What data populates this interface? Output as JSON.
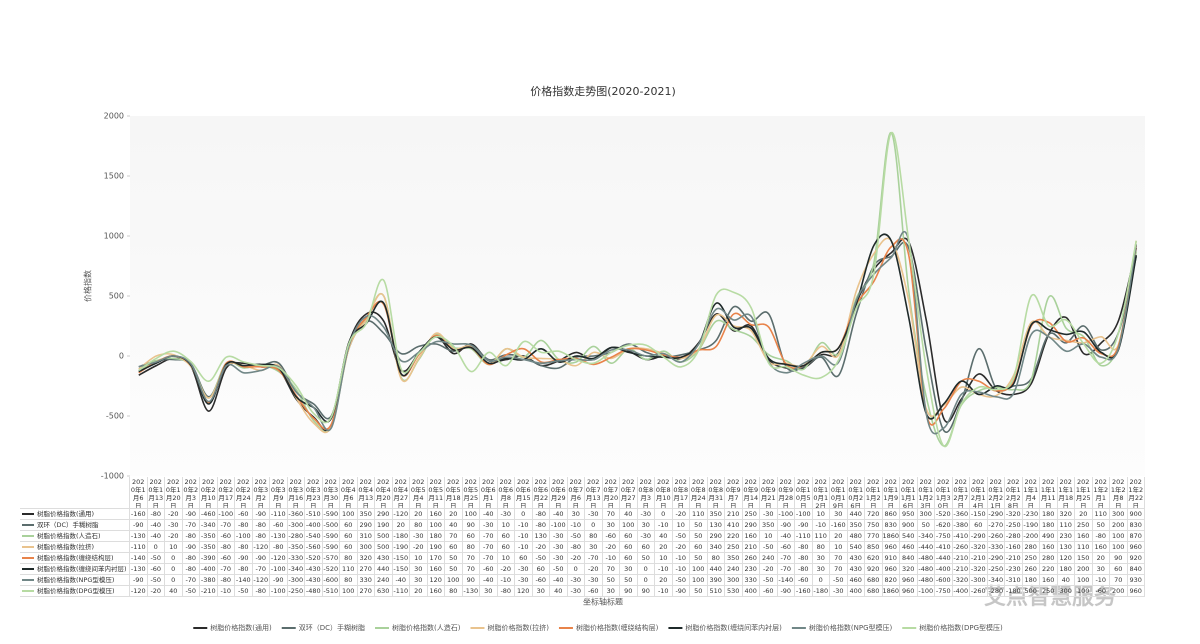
{
  "chart_data": {
    "type": "line",
    "title": "价格指数走势图(2020-2021)",
    "y_label": "价格指数",
    "x_label": "坐标轴标题",
    "watermark": "艾点智慧服务",
    "ylim": [
      -1000,
      2000
    ],
    "yticks": [
      -1000,
      -500,
      0,
      500,
      1000,
      1500,
      2000
    ],
    "grid": false,
    "categories": [
      "2020年1月6日",
      "2020年1月13日",
      "2020年1月20日",
      "2020年2月3日",
      "2020年2月10日",
      "2020年2月17日",
      "2020年2月24日",
      "2020年3月2日",
      "2020年3月9日",
      "2020年3月16日",
      "2020年3月23日",
      "2020年3月30日",
      "2020年4月6日",
      "2020年4月13日",
      "2020年4月20日",
      "2020年4月27日",
      "2020年5月4日",
      "2020年5月11日",
      "2020年5月18日",
      "2020年5月25日",
      "2020年6月1日",
      "2020年6月8日",
      "2020年6月15日",
      "2020年6月22日",
      "2020年6月29日",
      "2020年7月6日",
      "2020年7月13日",
      "2020年7月20日",
      "2020年7月27日",
      "2020年8月3日",
      "2020年8月10日",
      "2020年8月17日",
      "2020年8月24日",
      "2020年8月31日",
      "2020年9月7日",
      "2020年9月14日",
      "2020年9月21日",
      "2020年9月28日",
      "2020年10月5日",
      "2020年10月12日",
      "2020年10月19日",
      "2020年10月26日",
      "2020年11月2日",
      "2020年11月9日",
      "2020年11月16日",
      "2020年11月23日",
      "2020年11月30日",
      "2020年12月7日",
      "2020年12月14日",
      "2020年12月21日",
      "2020年12月28日",
      "2021年1月4日",
      "2021年1月11日",
      "2021年1月18日",
      "2021年1月25日",
      "2021年2月1日",
      "2021年2月8日",
      "2021年2月22日"
    ],
    "series": [
      {
        "name": "树脂价格指数(通用)",
        "color": "#2b2b2b",
        "values": [
          -160,
          -80,
          -20,
          -90,
          -460,
          -100,
          -60,
          -90,
          -110,
          -360,
          -510,
          -590,
          100,
          350,
          290,
          -120,
          20,
          160,
          20,
          100,
          -40,
          -30,
          0,
          -80,
          -40,
          30,
          -30,
          70,
          40,
          -30,
          0,
          -20,
          110,
          350,
          210,
          250,
          -30,
          -100,
          -100,
          10,
          30,
          440,
          720,
          860,
          950,
          300,
          -520,
          -360,
          -150,
          -290,
          -320,
          -230,
          180,
          320,
          20,
          110,
          300,
          900
        ]
      },
      {
        "name": "双环（DC）手糊树脂",
        "color": "#5b6d6d",
        "values": [
          -90,
          -40,
          -30,
          -70,
          -340,
          -70,
          -80,
          -80,
          -60,
          -300,
          -400,
          -500,
          60,
          290,
          190,
          20,
          80,
          100,
          40,
          90,
          -30,
          10,
          -10,
          -80,
          -100,
          -10,
          0,
          30,
          100,
          30,
          -10,
          10,
          50,
          130,
          410,
          290,
          350,
          -90,
          -90,
          -10,
          -160,
          350,
          750,
          830,
          900,
          50,
          -620,
          -380,
          60,
          -270,
          -250,
          -190,
          180,
          110,
          250,
          50,
          200,
          830
        ]
      },
      {
        "name": "树脂价格指数(人造石)",
        "color": "#a9d19b",
        "values": [
          -130,
          -40,
          -20,
          -80,
          -350,
          -60,
          -100,
          -80,
          -130,
          -280,
          -540,
          -590,
          60,
          310,
          500,
          -180,
          -30,
          180,
          70,
          60,
          -70,
          60,
          -10,
          130,
          -30,
          -50,
          80,
          -60,
          60,
          -30,
          40,
          -50,
          50,
          290,
          220,
          160,
          10,
          -40,
          -110,
          110,
          20,
          480,
          770,
          1860,
          540,
          -340,
          -750,
          -410,
          -290,
          -260,
          -280,
          -200,
          490,
          230,
          160,
          -80,
          100,
          870
        ]
      },
      {
        "name": "树脂价格指数(拉挤)",
        "color": "#e9c38e",
        "values": [
          -110,
          0,
          10,
          -90,
          -350,
          -80,
          -80,
          -120,
          -80,
          -350,
          -560,
          -590,
          60,
          300,
          500,
          -190,
          -20,
          190,
          60,
          80,
          -70,
          60,
          -10,
          -20,
          -30,
          -80,
          30,
          -20,
          60,
          60,
          20,
          -20,
          60,
          340,
          250,
          210,
          -50,
          -60,
          -80,
          80,
          10,
          540,
          850,
          960,
          460,
          -440,
          -410,
          -260,
          -320,
          -330,
          -160,
          280,
          160,
          130,
          110,
          160,
          100,
          960
        ]
      },
      {
        "name": "树脂价格指数(缠绕结构层)",
        "color": "#e8834a",
        "values": [
          -140,
          -50,
          0,
          -80,
          -390,
          -60,
          -90,
          -90,
          -120,
          -330,
          -520,
          -570,
          80,
          320,
          430,
          -150,
          10,
          170,
          50,
          70,
          -70,
          10,
          60,
          -50,
          -30,
          -20,
          -70,
          -10,
          60,
          50,
          10,
          -10,
          50,
          80,
          350,
          260,
          240,
          -70,
          -80,
          30,
          70,
          430,
          620,
          910,
          840,
          -480,
          -440,
          -210,
          -210,
          -290,
          -210,
          250,
          280,
          120,
          150,
          20,
          90,
          920
        ]
      },
      {
        "name": "树脂价格指数(缠绕间苯内衬层)",
        "color": "#1f2a2a",
        "values": [
          -130,
          -60,
          0,
          -80,
          -400,
          -70,
          -80,
          -70,
          -100,
          -340,
          -430,
          -520,
          110,
          270,
          440,
          -150,
          30,
          160,
          50,
          70,
          -60,
          -20,
          -30,
          60,
          -50,
          0,
          -20,
          70,
          30,
          0,
          -10,
          -10,
          100,
          440,
          240,
          230,
          -20,
          -70,
          -80,
          30,
          70,
          430,
          920,
          960,
          320,
          -480,
          -400,
          -210,
          -320,
          -250,
          -230,
          260,
          220,
          180,
          200,
          30,
          60,
          840
        ]
      },
      {
        "name": "树脂价格指数(NPG型模压)",
        "color": "#718787",
        "values": [
          -90,
          -50,
          0,
          -70,
          -380,
          -80,
          -140,
          -120,
          -90,
          -300,
          -430,
          -600,
          80,
          330,
          240,
          -40,
          30,
          120,
          100,
          90,
          -40,
          -10,
          -30,
          -60,
          -40,
          -30,
          -30,
          50,
          50,
          0,
          20,
          -50,
          100,
          390,
          300,
          330,
          -50,
          -140,
          -60,
          0,
          -50,
          460,
          680,
          820,
          960,
          -480,
          -600,
          -320,
          -300,
          -340,
          -310,
          180,
          160,
          40,
          100,
          -10,
          70,
          930
        ]
      },
      {
        "name": "树脂价格指数(DPG型模压)",
        "color": "#b7dba3",
        "values": [
          -120,
          -20,
          40,
          -50,
          -210,
          -10,
          -50,
          -80,
          -100,
          -250,
          -480,
          -510,
          100,
          270,
          630,
          -110,
          20,
          160,
          80,
          -130,
          30,
          -80,
          120,
          30,
          40,
          -30,
          -60,
          30,
          90,
          90,
          -10,
          -90,
          50,
          510,
          530,
          400,
          -60,
          -90,
          -160,
          -180,
          -30,
          400,
          680,
          1860,
          960,
          -100,
          -750,
          -400,
          -260,
          -280,
          -180,
          500,
          250,
          300,
          100,
          -60,
          200,
          960
        ]
      }
    ]
  }
}
